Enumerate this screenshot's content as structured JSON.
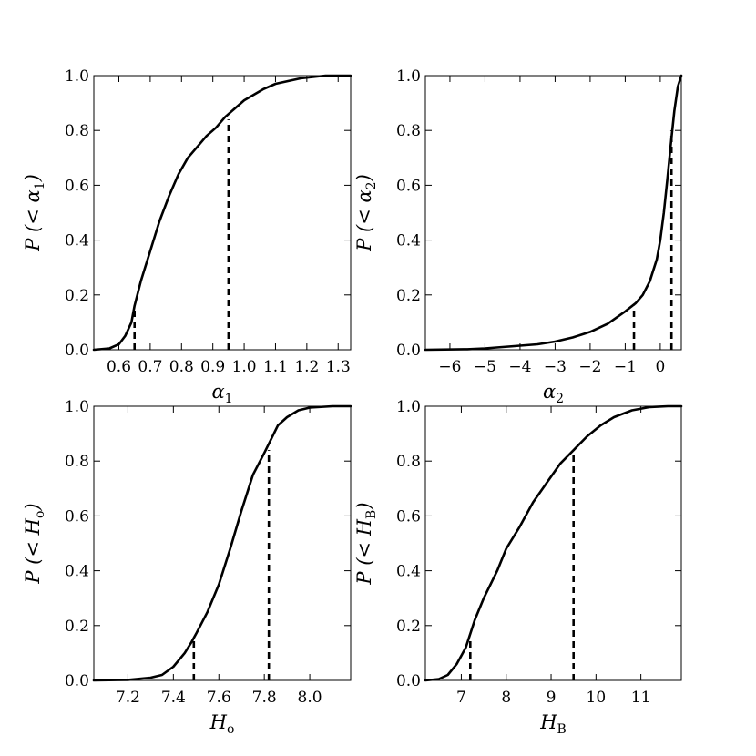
{
  "chart_data": [
    {
      "type": "line",
      "panel": "top-left",
      "xlabel": "α1",
      "ylabel": "P (< α1)",
      "xlim": [
        0.52,
        1.34
      ],
      "ylim": [
        0.0,
        1.0
      ],
      "xticks": [
        0.6,
        0.7,
        0.8,
        0.9,
        1.0,
        1.1,
        1.2,
        1.3
      ],
      "xtick_labels": [
        "0.6",
        "0.7",
        "0.8",
        "0.9",
        "1.0",
        "1.1",
        "1.2",
        "1.3"
      ],
      "yticks": [
        0.0,
        0.2,
        0.4,
        0.6,
        0.8,
        1.0
      ],
      "ytick_labels": [
        "0.0",
        "0.2",
        "0.4",
        "0.6",
        "0.8",
        "1.0"
      ],
      "series": [
        {
          "x": [
            0.52,
            0.57,
            0.6,
            0.62,
            0.64,
            0.65,
            0.67,
            0.7,
            0.73,
            0.76,
            0.79,
            0.82,
            0.85,
            0.88,
            0.91,
            0.94,
            0.97,
            1.0,
            1.03,
            1.06,
            1.1,
            1.14,
            1.18,
            1.22,
            1.26,
            1.3,
            1.34
          ],
          "y": [
            0.0,
            0.005,
            0.02,
            0.05,
            0.1,
            0.16,
            0.25,
            0.36,
            0.47,
            0.56,
            0.64,
            0.7,
            0.74,
            0.78,
            0.81,
            0.85,
            0.88,
            0.91,
            0.93,
            0.95,
            0.97,
            0.98,
            0.99,
            0.995,
            1.0,
            1.0,
            1.0
          ]
        }
      ],
      "dashed_markers": [
        {
          "x": 0.65,
          "y": 0.15
        },
        {
          "x": 0.95,
          "y": 0.84
        }
      ]
    },
    {
      "type": "line",
      "panel": "top-right",
      "xlabel": "α2",
      "ylabel": "P (< α2)",
      "xlim": [
        -6.7,
        0.6
      ],
      "ylim": [
        0.0,
        1.0
      ],
      "xticks": [
        -6,
        -5,
        -4,
        -3,
        -2,
        -1,
        0
      ],
      "xtick_labels": [
        "−6",
        "−5",
        "−4",
        "−3",
        "−2",
        "−1",
        "0"
      ],
      "yticks": [
        0.0,
        0.2,
        0.4,
        0.6,
        0.8,
        1.0
      ],
      "ytick_labels": [
        "0.0",
        "0.2",
        "0.4",
        "0.6",
        "0.8",
        "1.0"
      ],
      "series": [
        {
          "x": [
            -6.7,
            -5.5,
            -5.0,
            -4.5,
            -4.0,
            -3.5,
            -3.0,
            -2.5,
            -2.0,
            -1.5,
            -1.0,
            -0.7,
            -0.5,
            -0.3,
            -0.1,
            0.0,
            0.1,
            0.2,
            0.3,
            0.4,
            0.5,
            0.6
          ],
          "y": [
            0.0,
            0.002,
            0.005,
            0.01,
            0.015,
            0.02,
            0.03,
            0.045,
            0.065,
            0.095,
            0.14,
            0.17,
            0.2,
            0.25,
            0.33,
            0.4,
            0.5,
            0.62,
            0.75,
            0.87,
            0.96,
            1.0
          ]
        }
      ],
      "dashed_markers": [
        {
          "x": -0.75,
          "y": 0.16
        },
        {
          "x": 0.32,
          "y": 0.8
        }
      ]
    },
    {
      "type": "line",
      "panel": "bottom-left",
      "xlabel": "Ho",
      "ylabel": "P (< Ho)",
      "xlim": [
        7.05,
        8.18
      ],
      "ylim": [
        0.0,
        1.0
      ],
      "xticks": [
        7.2,
        7.4,
        7.6,
        7.8,
        8.0
      ],
      "xtick_labels": [
        "7.2",
        "7.4",
        "7.6",
        "7.8",
        "8.0"
      ],
      "yticks": [
        0.0,
        0.2,
        0.4,
        0.6,
        0.8,
        1.0
      ],
      "ytick_labels": [
        "0.0",
        "0.2",
        "0.4",
        "0.6",
        "0.8",
        "1.0"
      ],
      "series": [
        {
          "x": [
            7.05,
            7.2,
            7.3,
            7.35,
            7.4,
            7.45,
            7.48,
            7.5,
            7.55,
            7.6,
            7.65,
            7.7,
            7.75,
            7.8,
            7.83,
            7.86,
            7.9,
            7.95,
            8.0,
            8.1,
            8.18
          ],
          "y": [
            0.0,
            0.002,
            0.01,
            0.02,
            0.05,
            0.1,
            0.14,
            0.17,
            0.25,
            0.35,
            0.48,
            0.62,
            0.75,
            0.83,
            0.88,
            0.93,
            0.96,
            0.985,
            0.995,
            1.0,
            1.0
          ]
        }
      ],
      "dashed_markers": [
        {
          "x": 7.49,
          "y": 0.15
        },
        {
          "x": 7.82,
          "y": 0.84
        }
      ]
    },
    {
      "type": "line",
      "panel": "bottom-right",
      "xlabel": "HB",
      "ylabel": "P (< HB)",
      "xlim": [
        6.2,
        11.9
      ],
      "ylim": [
        0.0,
        1.0
      ],
      "xticks": [
        7,
        8,
        9,
        10,
        11
      ],
      "xtick_labels": [
        "7",
        "8",
        "9",
        "10",
        "11"
      ],
      "yticks": [
        0.0,
        0.2,
        0.4,
        0.6,
        0.8,
        1.0
      ],
      "ytick_labels": [
        "0.0",
        "0.2",
        "0.4",
        "0.6",
        "0.8",
        "1.0"
      ],
      "series": [
        {
          "x": [
            6.2,
            6.5,
            6.7,
            6.9,
            7.1,
            7.3,
            7.5,
            7.8,
            8.0,
            8.3,
            8.6,
            8.9,
            9.2,
            9.5,
            9.8,
            10.1,
            10.4,
            10.8,
            11.2,
            11.6,
            11.9
          ],
          "y": [
            0.0,
            0.005,
            0.02,
            0.06,
            0.12,
            0.22,
            0.3,
            0.4,
            0.48,
            0.56,
            0.65,
            0.72,
            0.79,
            0.84,
            0.89,
            0.93,
            0.96,
            0.985,
            0.997,
            1.0,
            1.0
          ]
        }
      ],
      "dashed_markers": [
        {
          "x": 7.2,
          "y": 0.15
        },
        {
          "x": 9.5,
          "y": 0.84
        }
      ]
    }
  ]
}
